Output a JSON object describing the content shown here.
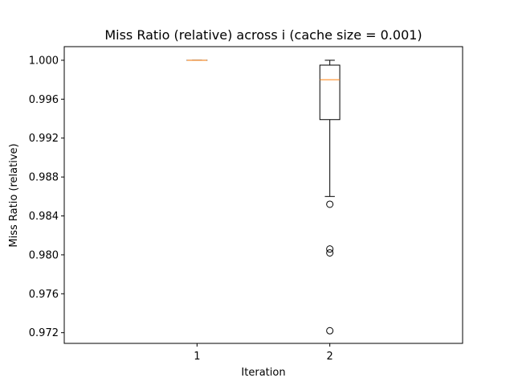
{
  "chart_data": {
    "type": "box",
    "title": "Miss Ratio (relative) across i (cache size = 0.001)",
    "xlabel": "Iteration",
    "ylabel": "Miss Ratio (relative)",
    "categories": [
      "1",
      "2"
    ],
    "ylim": [
      0.9709,
      1.0014
    ],
    "yticks": [
      "0.972",
      "0.976",
      "0.980",
      "0.984",
      "0.988",
      "0.992",
      "0.996",
      "1.000"
    ],
    "boxes": [
      {
        "category": "1",
        "whisker_low": 1.0,
        "q1": 1.0,
        "median": 1.0,
        "q3": 1.0,
        "whisker_high": 1.0,
        "outliers": []
      },
      {
        "category": "2",
        "whisker_low": 0.986,
        "q1": 0.9939,
        "median": 0.998,
        "q3": 0.9995,
        "whisker_high": 1.0,
        "outliers": [
          0.9852,
          0.9806,
          0.9802,
          0.9722
        ]
      }
    ],
    "grid": false,
    "colors": {
      "box": "#000000",
      "median": "#ff7f0e",
      "outlier": "#000000"
    }
  }
}
